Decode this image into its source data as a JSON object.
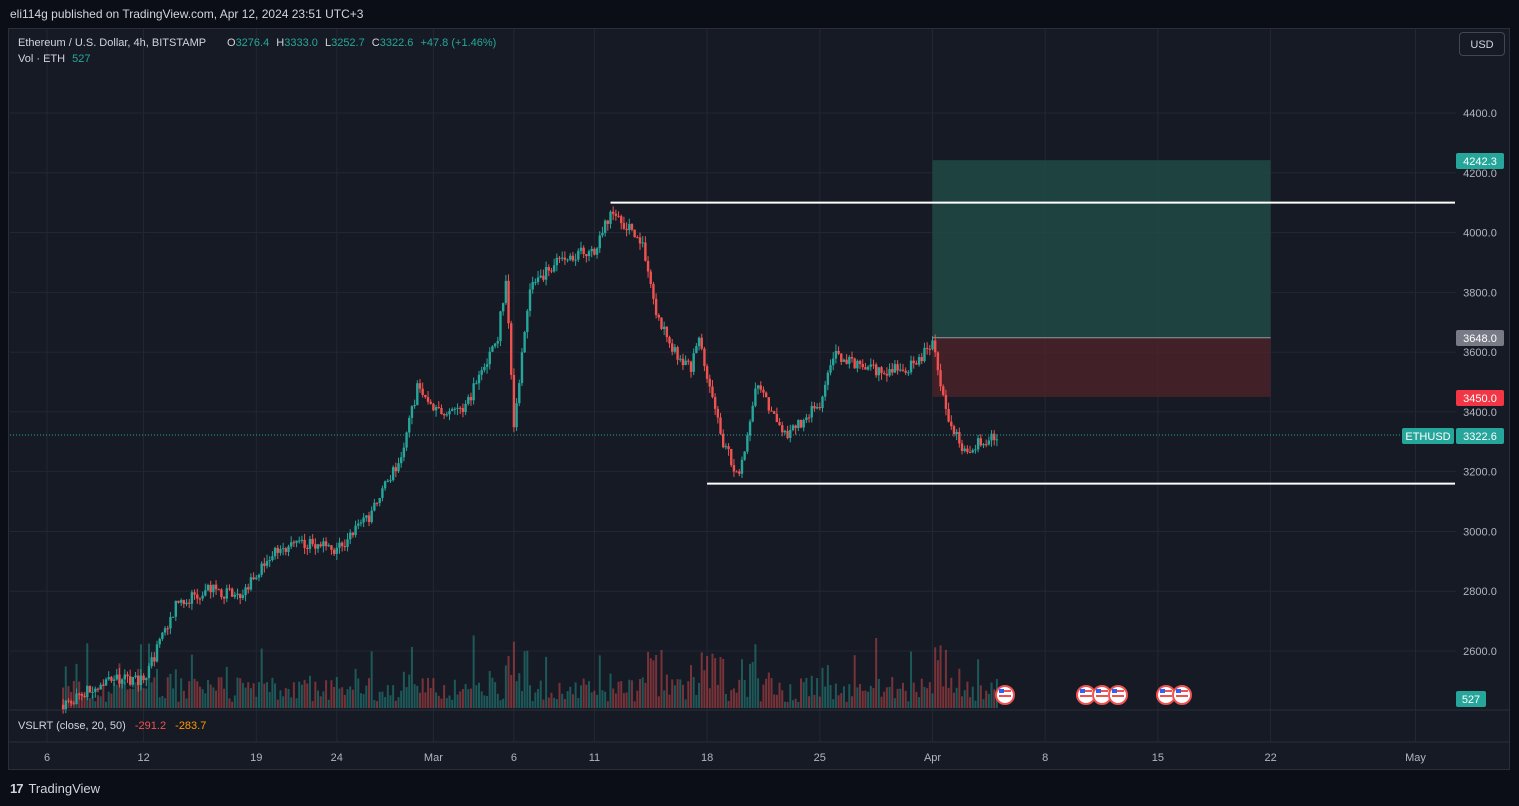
{
  "publish_info": "eli114g published on TradingView.com, Apr 12, 2024 23:51 UTC+3",
  "legend": {
    "symbol": "Ethereum / U.S. Dollar, 4h, BITSTAMP",
    "o_label": "O",
    "o_value": "3276.4",
    "h_label": "H",
    "h_value": "3333.0",
    "l_label": "L",
    "l_value": "3252.7",
    "c_label": "C",
    "c_value": "3322.6",
    "change": "+47.8 (+1.46%)",
    "vol_label": "Vol · ETH",
    "vol_value": "527"
  },
  "indicator": {
    "label": "VSLRT (close, 20, 50)",
    "value1": "-291.2",
    "value2": "-283.7"
  },
  "currency_button": "USD",
  "price_labels": {
    "target": "4242.3",
    "entry": "3648.0",
    "stop": "3450.0",
    "symbol_tag": "ETHUSD",
    "current": "3322.6",
    "volume": "527"
  },
  "brand": "TradingView",
  "colors": {
    "up": "#26a69a",
    "down": "#ef5350",
    "background": "#161a25",
    "grid": "#232733",
    "target_zone": "#1f4a45",
    "stop_zone": "#4a2229",
    "level_line": "#ffffff"
  },
  "chart_data": {
    "type": "candlestick",
    "title": "Ethereum / U.S. Dollar, 4h, BITSTAMP",
    "y_ticks": [
      4400,
      4200,
      4000,
      3800,
      3600,
      3400,
      3200,
      3000,
      2800,
      2600
    ],
    "y_tick_labels": [
      "4400.0",
      "4200.0",
      "4000.0",
      "3800.0",
      "3600.0",
      "3400.0",
      "3200.0",
      "3000.0",
      "2800.0",
      "2600.0"
    ],
    "ylim": [
      2400,
      4580
    ],
    "x_ticks": [
      "6",
      "12",
      "19",
      "24",
      "Mar",
      "6",
      "11",
      "18",
      "25",
      "Apr",
      "8",
      "15",
      "22",
      "May"
    ],
    "x_tick_dates": [
      "2024-02-06",
      "2024-02-12",
      "2024-02-19",
      "2024-02-24",
      "2024-03-01",
      "2024-03-06",
      "2024-03-11",
      "2024-03-18",
      "2024-03-25",
      "2024-04-01",
      "2024-04-08",
      "2024-04-15",
      "2024-04-22",
      "2024-05-01"
    ],
    "price_path": [
      [
        "2024-02-07",
        2420
      ],
      [
        "2024-02-10",
        2510
      ],
      [
        "2024-02-12",
        2500
      ],
      [
        "2024-02-14",
        2750
      ],
      [
        "2024-02-16",
        2810
      ],
      [
        "2024-02-18",
        2780
      ],
      [
        "2024-02-20",
        2930
      ],
      [
        "2024-02-22",
        2960
      ],
      [
        "2024-02-24",
        2940
      ],
      [
        "2024-02-26",
        3050
      ],
      [
        "2024-02-28",
        3250
      ],
      [
        "2024-02-29",
        3480
      ],
      [
        "2024-03-01",
        3400
      ],
      [
        "2024-03-03",
        3420
      ],
      [
        "2024-03-05",
        3650
      ],
      [
        "2024-03-05T12",
        3850
      ],
      [
        "2024-03-06",
        3350
      ],
      [
        "2024-03-07",
        3820
      ],
      [
        "2024-03-09",
        3920
      ],
      [
        "2024-03-11",
        3940
      ],
      [
        "2024-03-12",
        4070
      ],
      [
        "2024-03-13",
        4020
      ],
      [
        "2024-03-14",
        3960
      ],
      [
        "2024-03-15",
        3700
      ],
      [
        "2024-03-16",
        3600
      ],
      [
        "2024-03-17",
        3550
      ],
      [
        "2024-03-17T12",
        3640
      ],
      [
        "2024-03-19",
        3300
      ],
      [
        "2024-03-20",
        3180
      ],
      [
        "2024-03-21",
        3490
      ],
      [
        "2024-03-22",
        3400
      ],
      [
        "2024-03-23",
        3320
      ],
      [
        "2024-03-25",
        3430
      ],
      [
        "2024-03-26",
        3600
      ],
      [
        "2024-03-27",
        3560
      ],
      [
        "2024-03-29",
        3530
      ],
      [
        "2024-03-31",
        3560
      ],
      [
        "2024-04-01",
        3630
      ],
      [
        "2024-04-02",
        3380
      ],
      [
        "2024-04-03",
        3270
      ],
      [
        "2024-04-04",
        3300
      ],
      [
        "2024-04-05",
        3322.6
      ]
    ],
    "trade_setup": {
      "entry": 3648.0,
      "target": 4242.3,
      "stop": 3450.0,
      "start_date": "2024-04-01",
      "end_date": "2024-04-22"
    },
    "horizontal_levels": [
      {
        "price": 4100,
        "from": "2024-03-12"
      },
      {
        "price": 3160,
        "from": "2024-03-18"
      }
    ],
    "current_price": 3322.6,
    "volume_last": 527
  }
}
